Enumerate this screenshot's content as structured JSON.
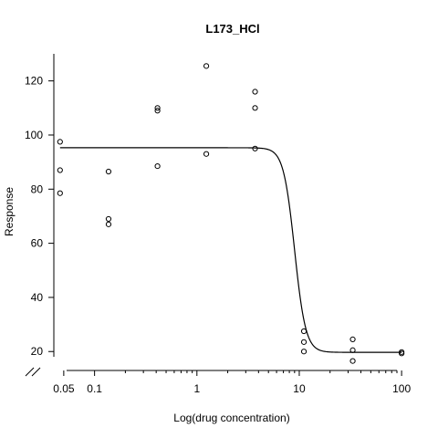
{
  "chart_data": {
    "type": "scatter",
    "title": "L173_HCl",
    "xlabel": "Log(drug concentration)",
    "ylabel": "Response",
    "x_scale": "log",
    "x_ticks": [
      0.05,
      0.1,
      1,
      10,
      100
    ],
    "x_tick_labels": [
      "0.05",
      "0.1",
      "1",
      "10",
      "100"
    ],
    "y_ticks": [
      20,
      40,
      60,
      80,
      100,
      120
    ],
    "y_tick_labels": [
      "20",
      "40",
      "60",
      "80",
      "100",
      "120"
    ],
    "xlim": [
      0.04,
      120
    ],
    "ylim": [
      13,
      130
    ],
    "axis_break": "y-axis break at bottom-left",
    "grid": false,
    "points": [
      {
        "x": 0.046,
        "y": 97.5
      },
      {
        "x": 0.046,
        "y": 87
      },
      {
        "x": 0.046,
        "y": 78.5
      },
      {
        "x": 0.137,
        "y": 86.5
      },
      {
        "x": 0.137,
        "y": 69
      },
      {
        "x": 0.137,
        "y": 67
      },
      {
        "x": 0.412,
        "y": 110
      },
      {
        "x": 0.412,
        "y": 109
      },
      {
        "x": 0.412,
        "y": 88.5
      },
      {
        "x": 1.235,
        "y": 125.5
      },
      {
        "x": 1.235,
        "y": 93
      },
      {
        "x": 3.7,
        "y": 116
      },
      {
        "x": 3.7,
        "y": 110
      },
      {
        "x": 3.7,
        "y": 95
      },
      {
        "x": 11.1,
        "y": 27.5
      },
      {
        "x": 11.1,
        "y": 23.5
      },
      {
        "x": 11.1,
        "y": 20
      },
      {
        "x": 33.3,
        "y": 24.5
      },
      {
        "x": 33.3,
        "y": 20.5
      },
      {
        "x": 33.3,
        "y": 16.5
      },
      {
        "x": 100,
        "y": 19.8
      },
      {
        "x": 100,
        "y": 19.3
      }
    ],
    "fit_curve": {
      "model": "4-parameter logistic",
      "top": 95.3,
      "bottom": 19.7,
      "ec50": 9.0,
      "hill": 8
    }
  }
}
